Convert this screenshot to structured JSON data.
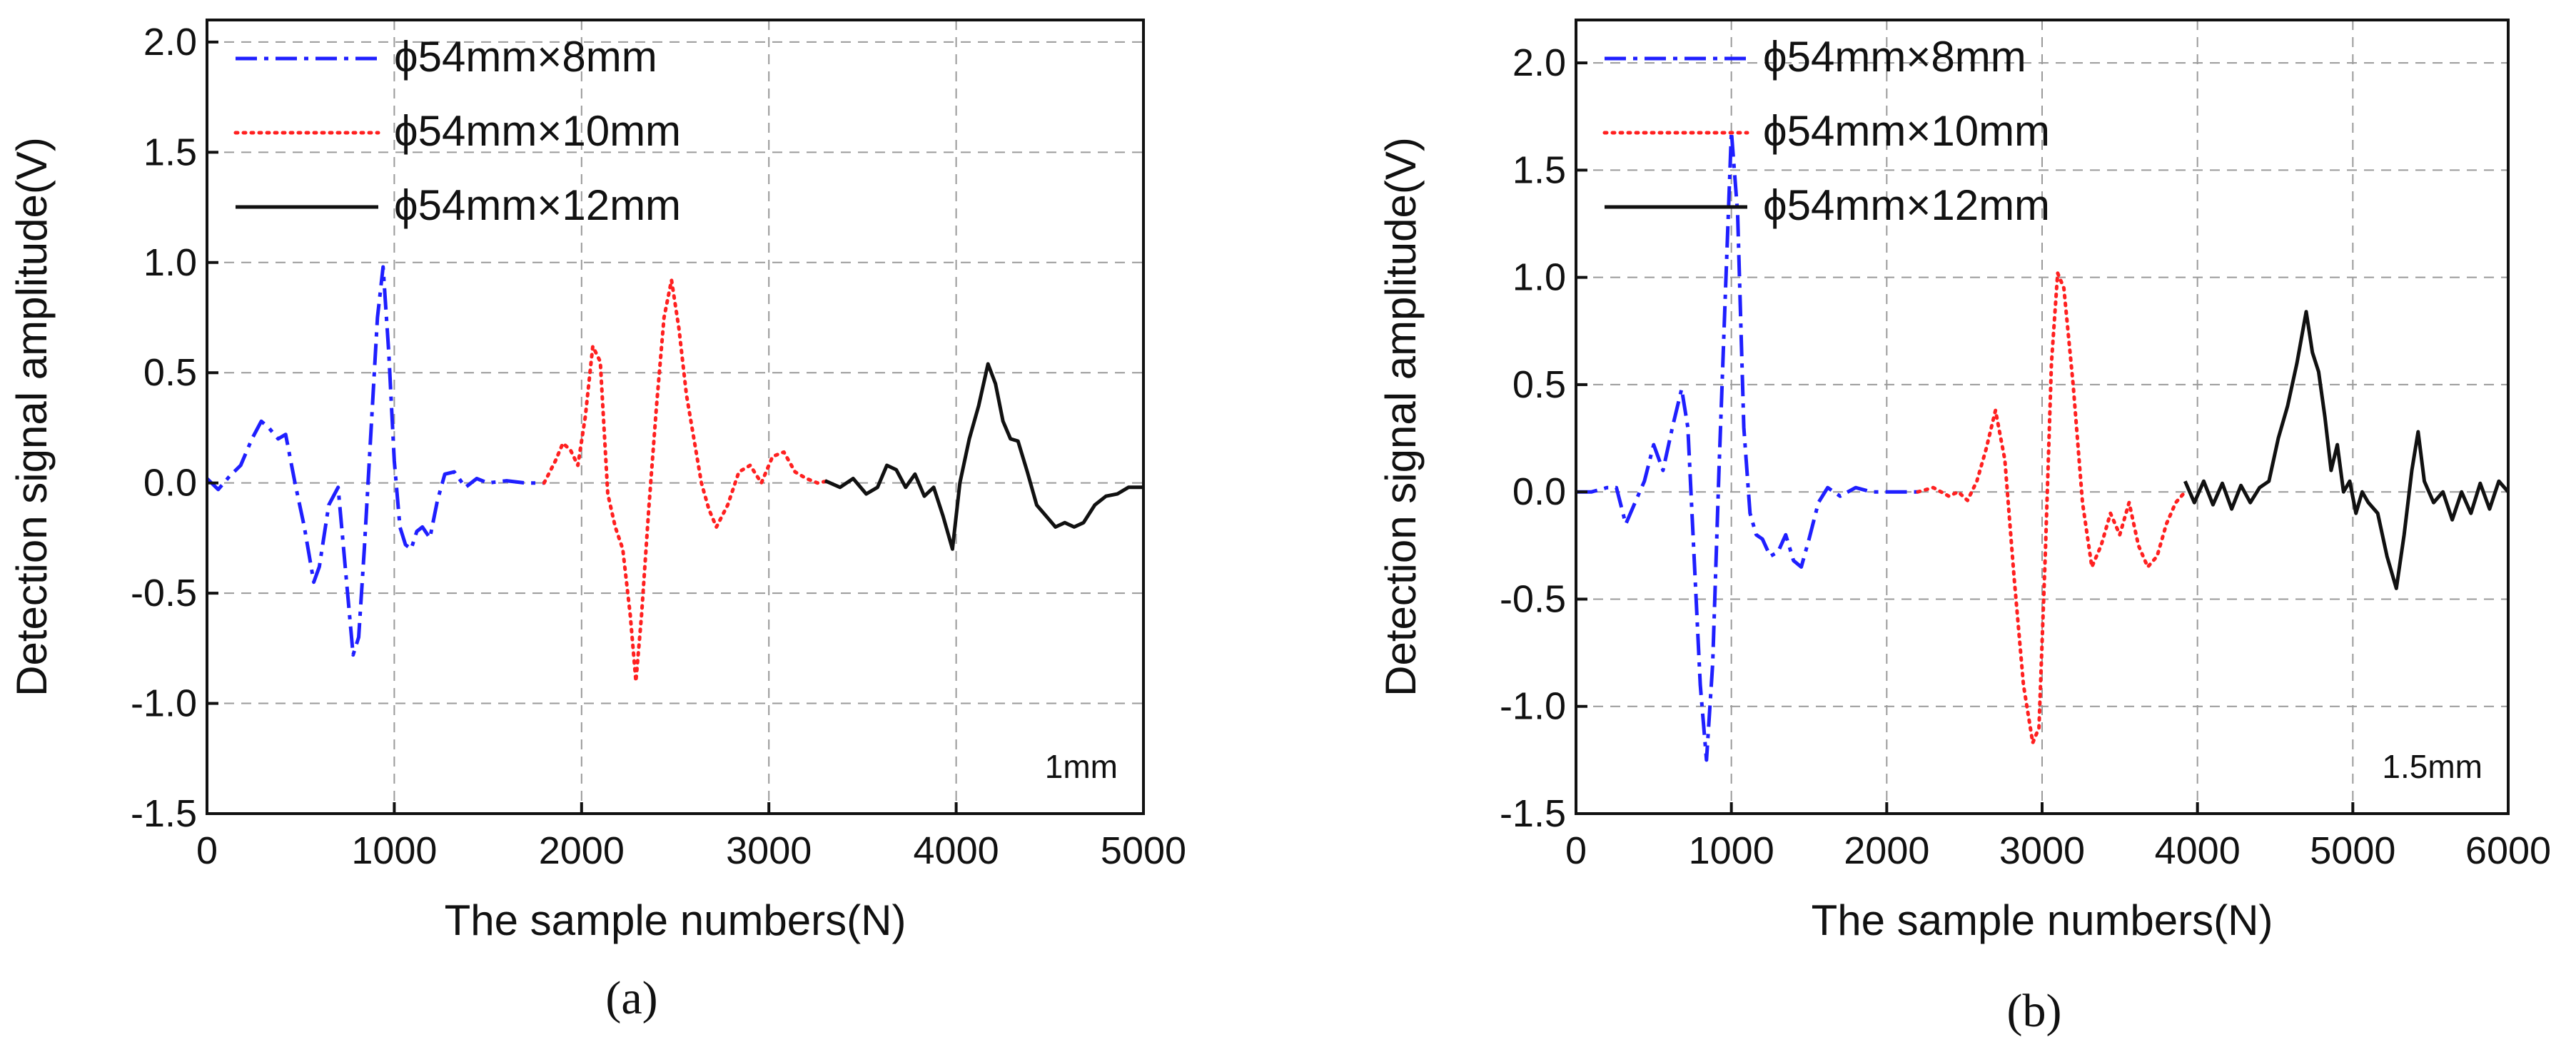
{
  "chart_data": [
    {
      "type": "line",
      "panel_label": "(a)",
      "annotation": "1mm",
      "xlabel": "The sample numbers(N)",
      "ylabel": "Detection signal amplitude(V)",
      "xlim": [
        0,
        5000
      ],
      "ylim": [
        -1.5,
        2.1
      ],
      "xticks": [
        0,
        1000,
        2000,
        3000,
        4000,
        5000
      ],
      "yticks": [
        -1.5,
        -1.0,
        -0.5,
        0.0,
        0.5,
        1.0,
        1.5,
        2.0
      ],
      "legend_position": "top-left",
      "series": [
        {
          "name": "ϕ54mm×8mm",
          "color": "#1f1fff",
          "style": "dashdot",
          "x": [
            0,
            60,
            120,
            180,
            240,
            290,
            330,
            380,
            420,
            470,
            520,
            570,
            600,
            650,
            700,
            740,
            780,
            810,
            840,
            880,
            910,
            940,
            970,
            1000,
            1030,
            1060,
            1090,
            1120,
            1150,
            1190,
            1230,
            1270,
            1320,
            1380,
            1440,
            1500,
            1600,
            1700,
            1800
          ],
          "y": [
            0.02,
            -0.03,
            0.03,
            0.08,
            0.2,
            0.28,
            0.25,
            0.2,
            0.22,
            0.0,
            -0.2,
            -0.45,
            -0.38,
            -0.1,
            -0.02,
            -0.4,
            -0.78,
            -0.7,
            -0.3,
            0.3,
            0.75,
            0.98,
            0.6,
            0.1,
            -0.2,
            -0.28,
            -0.3,
            -0.22,
            -0.2,
            -0.25,
            -0.08,
            0.04,
            0.05,
            -0.02,
            0.02,
            0.0,
            0.01,
            0.0,
            0.0
          ]
        },
        {
          "name": "ϕ54mm×10mm",
          "color": "#ff2020",
          "style": "dotted",
          "x": [
            1800,
            1860,
            1900,
            1940,
            1980,
            2020,
            2060,
            2100,
            2140,
            2180,
            2220,
            2260,
            2290,
            2320,
            2360,
            2400,
            2440,
            2480,
            2520,
            2560,
            2600,
            2640,
            2680,
            2720,
            2780,
            2840,
            2900,
            2960,
            3020,
            3080,
            3140,
            3200,
            3260,
            3320
          ],
          "y": [
            0.0,
            0.1,
            0.18,
            0.15,
            0.08,
            0.3,
            0.62,
            0.55,
            -0.05,
            -0.2,
            -0.3,
            -0.6,
            -0.9,
            -0.6,
            -0.1,
            0.35,
            0.75,
            0.92,
            0.7,
            0.4,
            0.2,
            0.0,
            -0.12,
            -0.2,
            -0.1,
            0.05,
            0.08,
            0.0,
            0.12,
            0.14,
            0.05,
            0.02,
            0.0,
            0.01
          ]
        },
        {
          "name": "ϕ54mm×12mm",
          "color": "#111111",
          "style": "solid",
          "x": [
            3300,
            3380,
            3450,
            3520,
            3580,
            3630,
            3680,
            3730,
            3780,
            3830,
            3880,
            3930,
            3980,
            4020,
            4070,
            4120,
            4170,
            4210,
            4250,
            4290,
            4330,
            4380,
            4430,
            4480,
            4530,
            4580,
            4630,
            4680,
            4740,
            4800,
            4860,
            4920,
            5000
          ],
          "y": [
            0.01,
            -0.02,
            0.02,
            -0.05,
            -0.02,
            0.08,
            0.06,
            -0.02,
            0.04,
            -0.06,
            -0.02,
            -0.15,
            -0.3,
            0.0,
            0.2,
            0.35,
            0.54,
            0.45,
            0.28,
            0.2,
            0.19,
            0.05,
            -0.1,
            -0.15,
            -0.2,
            -0.18,
            -0.2,
            -0.18,
            -0.1,
            -0.06,
            -0.05,
            -0.02,
            -0.02
          ]
        }
      ]
    },
    {
      "type": "line",
      "panel_label": "(b)",
      "annotation": "1.5mm",
      "xlabel": "The sample numbers(N)",
      "ylabel": "Detection signal amplitude(V)",
      "xlim": [
        0,
        6000
      ],
      "ylim": [
        -1.5,
        2.2
      ],
      "xticks": [
        0,
        1000,
        2000,
        3000,
        4000,
        5000,
        6000
      ],
      "yticks": [
        -1.5,
        -1.0,
        -0.5,
        0.0,
        0.5,
        1.0,
        1.5,
        2.0
      ],
      "legend_position": "top-left",
      "series": [
        {
          "name": "ϕ54mm×8mm",
          "color": "#1f1fff",
          "style": "dashdot",
          "x": [
            0,
            100,
            200,
            260,
            320,
            380,
            440,
            500,
            560,
            620,
            680,
            720,
            760,
            800,
            840,
            880,
            920,
            960,
            1000,
            1040,
            1080,
            1120,
            1160,
            1200,
            1250,
            1300,
            1350,
            1400,
            1450,
            1500,
            1560,
            1620,
            1700,
            1800,
            1900,
            2000,
            2100,
            2200
          ],
          "y": [
            0.0,
            0.0,
            0.02,
            0.02,
            -0.15,
            -0.05,
            0.05,
            0.22,
            0.1,
            0.3,
            0.48,
            0.3,
            -0.3,
            -0.9,
            -1.25,
            -0.8,
            0.1,
            0.9,
            1.68,
            1.3,
            0.3,
            -0.1,
            -0.2,
            -0.22,
            -0.3,
            -0.28,
            -0.2,
            -0.32,
            -0.35,
            -0.22,
            -0.05,
            0.02,
            -0.02,
            0.02,
            0.0,
            0.0,
            0.0,
            0.0
          ]
        },
        {
          "name": "ϕ54mm×10mm",
          "color": "#ff2020",
          "style": "dotted",
          "x": [
            2200,
            2300,
            2400,
            2460,
            2520,
            2580,
            2640,
            2700,
            2760,
            2820,
            2880,
            2940,
            2980,
            3020,
            3060,
            3100,
            3140,
            3200,
            3260,
            3320,
            3380,
            3440,
            3500,
            3560,
            3620,
            3680,
            3740,
            3800,
            3860,
            3920
          ],
          "y": [
            0.0,
            0.02,
            -0.02,
            0.0,
            -0.04,
            0.05,
            0.2,
            0.38,
            0.15,
            -0.4,
            -0.9,
            -1.17,
            -1.1,
            -0.3,
            0.6,
            1.02,
            0.95,
            0.5,
            -0.05,
            -0.35,
            -0.25,
            -0.1,
            -0.2,
            -0.05,
            -0.25,
            -0.35,
            -0.3,
            -0.15,
            -0.05,
            0.0
          ]
        },
        {
          "name": "ϕ54mm×12mm",
          "color": "#111111",
          "style": "solid",
          "x": [
            3920,
            3980,
            4040,
            4100,
            4160,
            4220,
            4280,
            4340,
            4400,
            4460,
            4520,
            4580,
            4640,
            4700,
            4740,
            4780,
            4820,
            4860,
            4900,
            4940,
            4980,
            5020,
            5060,
            5100,
            5160,
            5220,
            5280,
            5330,
            5380,
            5420,
            5460,
            5520,
            5580,
            5640,
            5700,
            5760,
            5820,
            5880,
            5940,
            6000
          ],
          "y": [
            0.05,
            -0.05,
            0.05,
            -0.06,
            0.04,
            -0.08,
            0.03,
            -0.05,
            0.02,
            0.05,
            0.25,
            0.4,
            0.6,
            0.84,
            0.65,
            0.56,
            0.35,
            0.1,
            0.22,
            0.0,
            0.05,
            -0.1,
            0.0,
            -0.05,
            -0.1,
            -0.3,
            -0.45,
            -0.2,
            0.1,
            0.28,
            0.05,
            -0.05,
            0.0,
            -0.13,
            0.0,
            -0.1,
            0.04,
            -0.08,
            0.05,
            0.0
          ]
        }
      ]
    }
  ]
}
